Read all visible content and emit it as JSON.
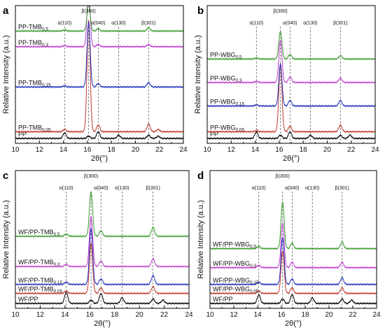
{
  "chart_data": [
    {
      "type": "line",
      "panel": "a",
      "xlabel": "2θ(°)",
      "ylabel": "Relative Intensity (a.u.)",
      "xlim": [
        10,
        24
      ],
      "xticks": [
        "10",
        "12",
        "14",
        "16",
        "18",
        "20",
        "22",
        "24"
      ],
      "peak_markers": [
        {
          "x": 14.1,
          "label": "α(110)"
        },
        {
          "x": 16.1,
          "label": "β(300)"
        },
        {
          "x": 16.9,
          "label": "α(040)"
        },
        {
          "x": 18.6,
          "label": "α(130)"
        },
        {
          "x": 21.1,
          "label": "β(301)"
        }
      ],
      "series": [
        {
          "name": "PP",
          "base": "PP",
          "sub": "",
          "color": "#000000",
          "offset": 0.0,
          "peaks": [
            [
              14.1,
              0.05
            ],
            [
              16.1,
              0.02
            ],
            [
              16.9,
              0.06
            ],
            [
              18.6,
              0.03
            ],
            [
              21.1,
              0.03
            ],
            [
              21.9,
              0.02
            ]
          ]
        },
        {
          "name": "PP-TMB0.05",
          "base": "PP-TMB",
          "sub": "0.05",
          "color": "#c0392b",
          "offset": 0.06,
          "peaks": [
            [
              14.1,
              0.02
            ],
            [
              16.1,
              1.0
            ],
            [
              16.9,
              0.06
            ],
            [
              21.1,
              0.07
            ],
            [
              21.9,
              0.02
            ]
          ]
        },
        {
          "name": "PP-TMB0.15",
          "base": "PP-TMB",
          "sub": "0.15",
          "color": "#1f2fbf",
          "offset": 0.46,
          "peaks": [
            [
              14.1,
              0.01
            ],
            [
              16.1,
              0.58
            ],
            [
              16.9,
              0.03
            ],
            [
              21.1,
              0.04
            ]
          ]
        },
        {
          "name": "PP-TMB0.3",
          "base": "PP-TMB",
          "sub": "0.3",
          "color": "#c03ccf",
          "offset": 0.82,
          "peaks": [
            [
              14.1,
              0.01
            ],
            [
              16.1,
              0.5
            ],
            [
              16.9,
              0.02
            ],
            [
              21.1,
              0.02
            ]
          ]
        },
        {
          "name": "PP-TMB0.5",
          "base": "PP-TMB",
          "sub": "0.5",
          "color": "#3a9a2e",
          "offset": 0.96,
          "peaks": [
            [
              14.1,
              0.01
            ],
            [
              16.1,
              0.24
            ],
            [
              16.9,
              0.02
            ],
            [
              21.1,
              0.03
            ]
          ]
        }
      ]
    },
    {
      "type": "line",
      "panel": "b",
      "xlabel": "2θ(°)",
      "ylabel": "Relative Intensity (a.u.)",
      "xlim": [
        10,
        24
      ],
      "xticks": [
        "10",
        "12",
        "14",
        "16",
        "18",
        "20",
        "22",
        "24"
      ],
      "peak_markers": [
        {
          "x": 14.1,
          "label": "α(110)"
        },
        {
          "x": 16.1,
          "label": "β(300)"
        },
        {
          "x": 16.9,
          "label": "α(040)"
        },
        {
          "x": 18.6,
          "label": "α(130)"
        },
        {
          "x": 21.1,
          "label": "β(301)"
        }
      ],
      "series": [
        {
          "name": "PP",
          "base": "PP",
          "sub": "",
          "color": "#000000",
          "offset": 0.0,
          "peaks": [
            [
              14.1,
              0.06
            ],
            [
              16.1,
              0.03
            ],
            [
              16.9,
              0.06
            ],
            [
              18.6,
              0.03
            ],
            [
              21.1,
              0.03
            ],
            [
              21.9,
              0.03
            ]
          ]
        },
        {
          "name": "PP-WBG0.05",
          "base": "PP-WBG",
          "sub": "0.05",
          "color": "#c0392b",
          "offset": 0.06,
          "peaks": [
            [
              14.1,
              0.01
            ],
            [
              16.1,
              0.6
            ],
            [
              16.9,
              0.05
            ],
            [
              21.1,
              0.06
            ]
          ]
        },
        {
          "name": "PP-WBG0.15",
          "base": "PP-WBG",
          "sub": "0.15",
          "color": "#1f2fbf",
          "offset": 0.29,
          "peaks": [
            [
              14.1,
              0.01
            ],
            [
              16.1,
              0.38
            ],
            [
              16.9,
              0.05
            ],
            [
              21.1,
              0.05
            ]
          ]
        },
        {
          "name": "PP-WBG0.3",
          "base": "PP-WBG",
          "sub": "0.3",
          "color": "#c03ccf",
          "offset": 0.5,
          "peaks": [
            [
              14.1,
              0.01
            ],
            [
              16.1,
              0.38
            ],
            [
              16.9,
              0.05
            ],
            [
              21.1,
              0.04
            ]
          ]
        },
        {
          "name": "PP-WBG0.5",
          "base": "PP-WBG",
          "sub": "0.5",
          "color": "#3a9a2e",
          "offset": 0.71,
          "peaks": [
            [
              14.1,
              0.01
            ],
            [
              16.1,
              0.25
            ],
            [
              16.9,
              0.04
            ],
            [
              21.1,
              0.03
            ]
          ]
        }
      ]
    },
    {
      "type": "line",
      "panel": "c",
      "xlabel": "2θ(°)",
      "ylabel": "Relative Intensity (a.u.)",
      "xlim": [
        10,
        24
      ],
      "xticks": [
        "10",
        "12",
        "14",
        "16",
        "18",
        "20",
        "22",
        "24"
      ],
      "peak_markers": [
        {
          "x": 14.1,
          "label": "α(110)"
        },
        {
          "x": 16.1,
          "label": "β(300)"
        },
        {
          "x": 16.9,
          "label": "α(040)"
        },
        {
          "x": 18.6,
          "label": "α(130)"
        },
        {
          "x": 21.1,
          "label": "β(301)"
        }
      ],
      "series": [
        {
          "name": "WF/PP",
          "base": "WF/PP",
          "sub": "",
          "color": "#000000",
          "offset": 0.0,
          "peaks": [
            [
              14.1,
              0.1
            ],
            [
              16.1,
              0.03
            ],
            [
              16.9,
              0.09
            ],
            [
              18.6,
              0.05
            ],
            [
              21.1,
              0.04
            ],
            [
              21.9,
              0.03
            ]
          ]
        },
        {
          "name": "WF/PP-TMB0.05",
          "base": "WF/PP-TMB",
          "sub": "0.05",
          "color": "#c0392b",
          "offset": 0.09,
          "peaks": [
            [
              14.1,
              0.02
            ],
            [
              16.1,
              0.45
            ],
            [
              16.9,
              0.05
            ],
            [
              21.1,
              0.06
            ]
          ]
        },
        {
          "name": "WF/PP-TMB0.15",
          "base": "WF/PP-TMB",
          "sub": "0.15",
          "color": "#1f2fbf",
          "offset": 0.17,
          "peaks": [
            [
              14.1,
              0.02
            ],
            [
              16.1,
              0.5
            ],
            [
              16.9,
              0.05
            ],
            [
              21.1,
              0.08
            ]
          ]
        },
        {
          "name": "WF/PP-TMB0.3",
          "base": "WF/PP-TMB",
          "sub": "0.3",
          "color": "#c03ccf",
          "offset": 0.33,
          "peaks": [
            [
              14.1,
              0.02
            ],
            [
              16.1,
              0.45
            ],
            [
              16.9,
              0.05
            ],
            [
              21.1,
              0.07
            ]
          ]
        },
        {
          "name": "WF/PP-TMB0.5",
          "base": "WF/PP-TMB",
          "sub": "0.5",
          "color": "#3a9a2e",
          "offset": 0.6,
          "peaks": [
            [
              14.1,
              0.02
            ],
            [
              16.1,
              0.4
            ],
            [
              16.9,
              0.05
            ],
            [
              21.1,
              0.08
            ]
          ]
        }
      ]
    },
    {
      "type": "line",
      "panel": "d",
      "xlabel": "2θ(°)",
      "ylabel": "Relative Intensity (a.u.)",
      "xlim": [
        10,
        24
      ],
      "xticks": [
        "10",
        "12",
        "14",
        "16",
        "18",
        "20",
        "22",
        "24"
      ],
      "peak_markers": [
        {
          "x": 14.1,
          "label": "α(110)"
        },
        {
          "x": 16.1,
          "label": "β(300)"
        },
        {
          "x": 16.9,
          "label": "α(040)"
        },
        {
          "x": 18.6,
          "label": "α(130)"
        },
        {
          "x": 21.1,
          "label": "β(301)"
        }
      ],
      "series": [
        {
          "name": "WF/PP",
          "base": "WF/PP",
          "sub": "",
          "color": "#000000",
          "offset": 0.0,
          "peaks": [
            [
              14.1,
              0.08
            ],
            [
              16.1,
              0.04
            ],
            [
              16.9,
              0.08
            ],
            [
              18.6,
              0.05
            ],
            [
              21.1,
              0.04
            ],
            [
              21.9,
              0.03
            ]
          ]
        },
        {
          "name": "WF/PP-WBG0.05",
          "base": "WF/PP-WBG",
          "sub": "0.05",
          "color": "#c0392b",
          "offset": 0.09,
          "peaks": [
            [
              14.1,
              0.02
            ],
            [
              16.1,
              0.38
            ],
            [
              16.9,
              0.05
            ],
            [
              21.1,
              0.05
            ]
          ]
        },
        {
          "name": "WF/PP-WBG0.15",
          "base": "WF/PP-WBG",
          "sub": "0.15",
          "color": "#1f2fbf",
          "offset": 0.17,
          "peaks": [
            [
              14.1,
              0.02
            ],
            [
              16.1,
              0.42
            ],
            [
              16.9,
              0.05
            ],
            [
              21.1,
              0.06
            ]
          ]
        },
        {
          "name": "WF/PP-WBG0.3",
          "base": "WF/PP-WBG",
          "sub": "0.3",
          "color": "#c03ccf",
          "offset": 0.32,
          "peaks": [
            [
              14.1,
              0.02
            ],
            [
              16.1,
              0.4
            ],
            [
              16.9,
              0.05
            ],
            [
              21.1,
              0.05
            ]
          ]
        },
        {
          "name": "WF/PP-WBG0.5",
          "base": "WF/PP-WBG",
          "sub": "0.5",
          "color": "#3a9a2e",
          "offset": 0.49,
          "peaks": [
            [
              14.1,
              0.02
            ],
            [
              16.1,
              0.42
            ],
            [
              16.9,
              0.05
            ],
            [
              21.1,
              0.06
            ]
          ]
        }
      ]
    }
  ]
}
